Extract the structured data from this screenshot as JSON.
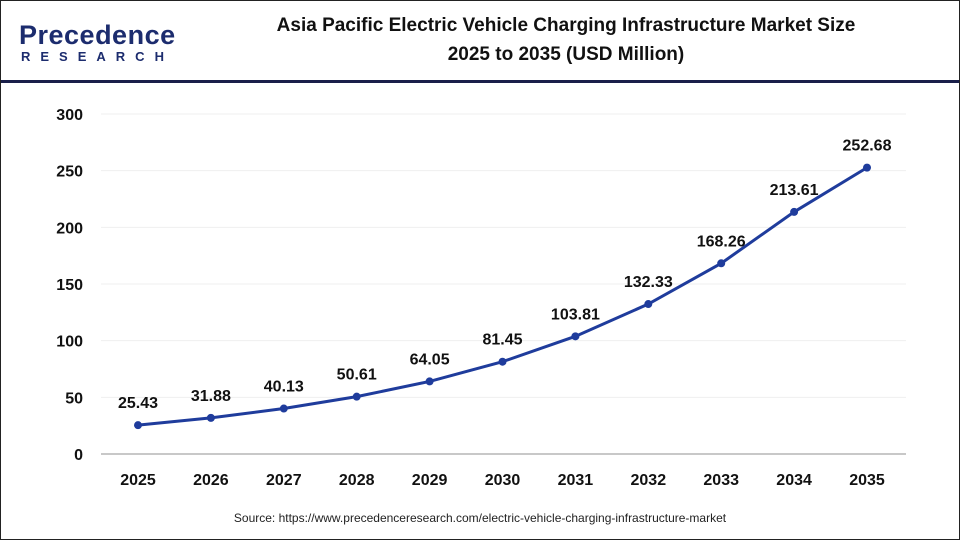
{
  "logo": {
    "line1": "Precedence",
    "line2": "RESEARCH"
  },
  "title_line1": "Asia Pacific Electric Vehicle Charging Infrastructure Market Size",
  "title_line2": "2025 to 2035 (USD Million)",
  "source": "Source: https://www.precedenceresearch.com/electric-vehicle-charging-infrastructure-market",
  "chart_data": {
    "type": "line",
    "title": "Asia Pacific Electric Vehicle Charging Infrastructure Market Size 2025 to 2035 (USD Million)",
    "categories": [
      "2025",
      "2026",
      "2027",
      "2028",
      "2029",
      "2030",
      "2031",
      "2032",
      "2033",
      "2034",
      "2035"
    ],
    "values": [
      25.43,
      31.88,
      40.13,
      50.61,
      64.05,
      81.45,
      103.81,
      132.33,
      168.26,
      213.61,
      252.68
    ],
    "labels": [
      "25.43",
      "31.88",
      "40.13",
      "50.61",
      "64.05",
      "81.45",
      "103.81",
      "132.33",
      "168.26",
      "213.61",
      "252.68"
    ],
    "yticks": [
      "0",
      "50",
      "100",
      "150",
      "200",
      "250",
      "300"
    ],
    "ylim": [
      0,
      300
    ],
    "grid": true,
    "line_color": "#1f3c9c"
  }
}
